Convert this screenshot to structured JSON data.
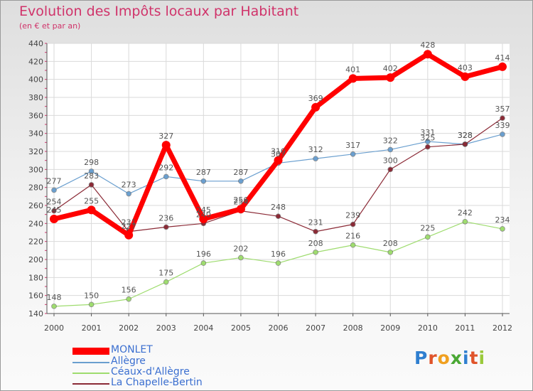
{
  "chart_data": {
    "type": "line",
    "title": "Evolution des Impôts locaux par Habitant",
    "subtitle": "(en € et par an)",
    "xlabel": "",
    "ylabel": "",
    "ylim": [
      140,
      440
    ],
    "y_ticks": [
      140,
      160,
      180,
      200,
      220,
      240,
      260,
      280,
      300,
      320,
      340,
      360,
      380,
      400,
      420,
      440
    ],
    "x": [
      "2000",
      "2001",
      "2002",
      "2003",
      "2004",
      "2005",
      "2006",
      "2007",
      "2008",
      "2009",
      "2010",
      "2011",
      "2012"
    ],
    "grid": true,
    "legend_position": "bottom-left",
    "series": [
      {
        "name": "MONLET",
        "color": "#ff0000",
        "values": [
          245,
          255,
          227,
          327,
          245,
          256,
          310,
          369,
          401,
          402,
          428,
          403,
          414
        ],
        "labels": [
          "245",
          "255",
          "227",
          "327",
          "245",
          "256",
          "310",
          "369",
          "401",
          "402",
          "428",
          "403",
          "414"
        ]
      },
      {
        "name": "Allègre",
        "color": "#6a9fcf",
        "values": [
          277,
          298,
          273,
          292,
          287,
          287,
          307,
          312,
          317,
          322,
          331,
          328,
          339
        ],
        "labels": [
          "277",
          "298",
          "273",
          "292",
          "287",
          "287",
          "307",
          "312",
          "317",
          "322",
          "331",
          "328",
          "339"
        ]
      },
      {
        "name": "Céaux-d'Allègre",
        "color": "#9edc6e",
        "values": [
          148,
          150,
          156,
          175,
          196,
          202,
          196,
          208,
          216,
          208,
          225,
          242,
          234
        ],
        "labels": [
          "148",
          "150",
          "156",
          "175",
          "196",
          "202",
          "196",
          "208",
          "216",
          "208",
          "225",
          "242",
          "234"
        ]
      },
      {
        "name": "La Chapelle-Bertin",
        "color": "#8b2a36",
        "values": [
          254,
          283,
          231,
          236,
          240,
          254,
          248,
          231,
          239,
          300,
          325,
          328,
          357
        ],
        "labels": [
          "254",
          "283",
          "231",
          "236",
          "240",
          "254",
          "248",
          "231",
          "239",
          "300",
          "325",
          "328",
          "357"
        ]
      }
    ]
  },
  "logo": {
    "text": "Proxiti"
  }
}
